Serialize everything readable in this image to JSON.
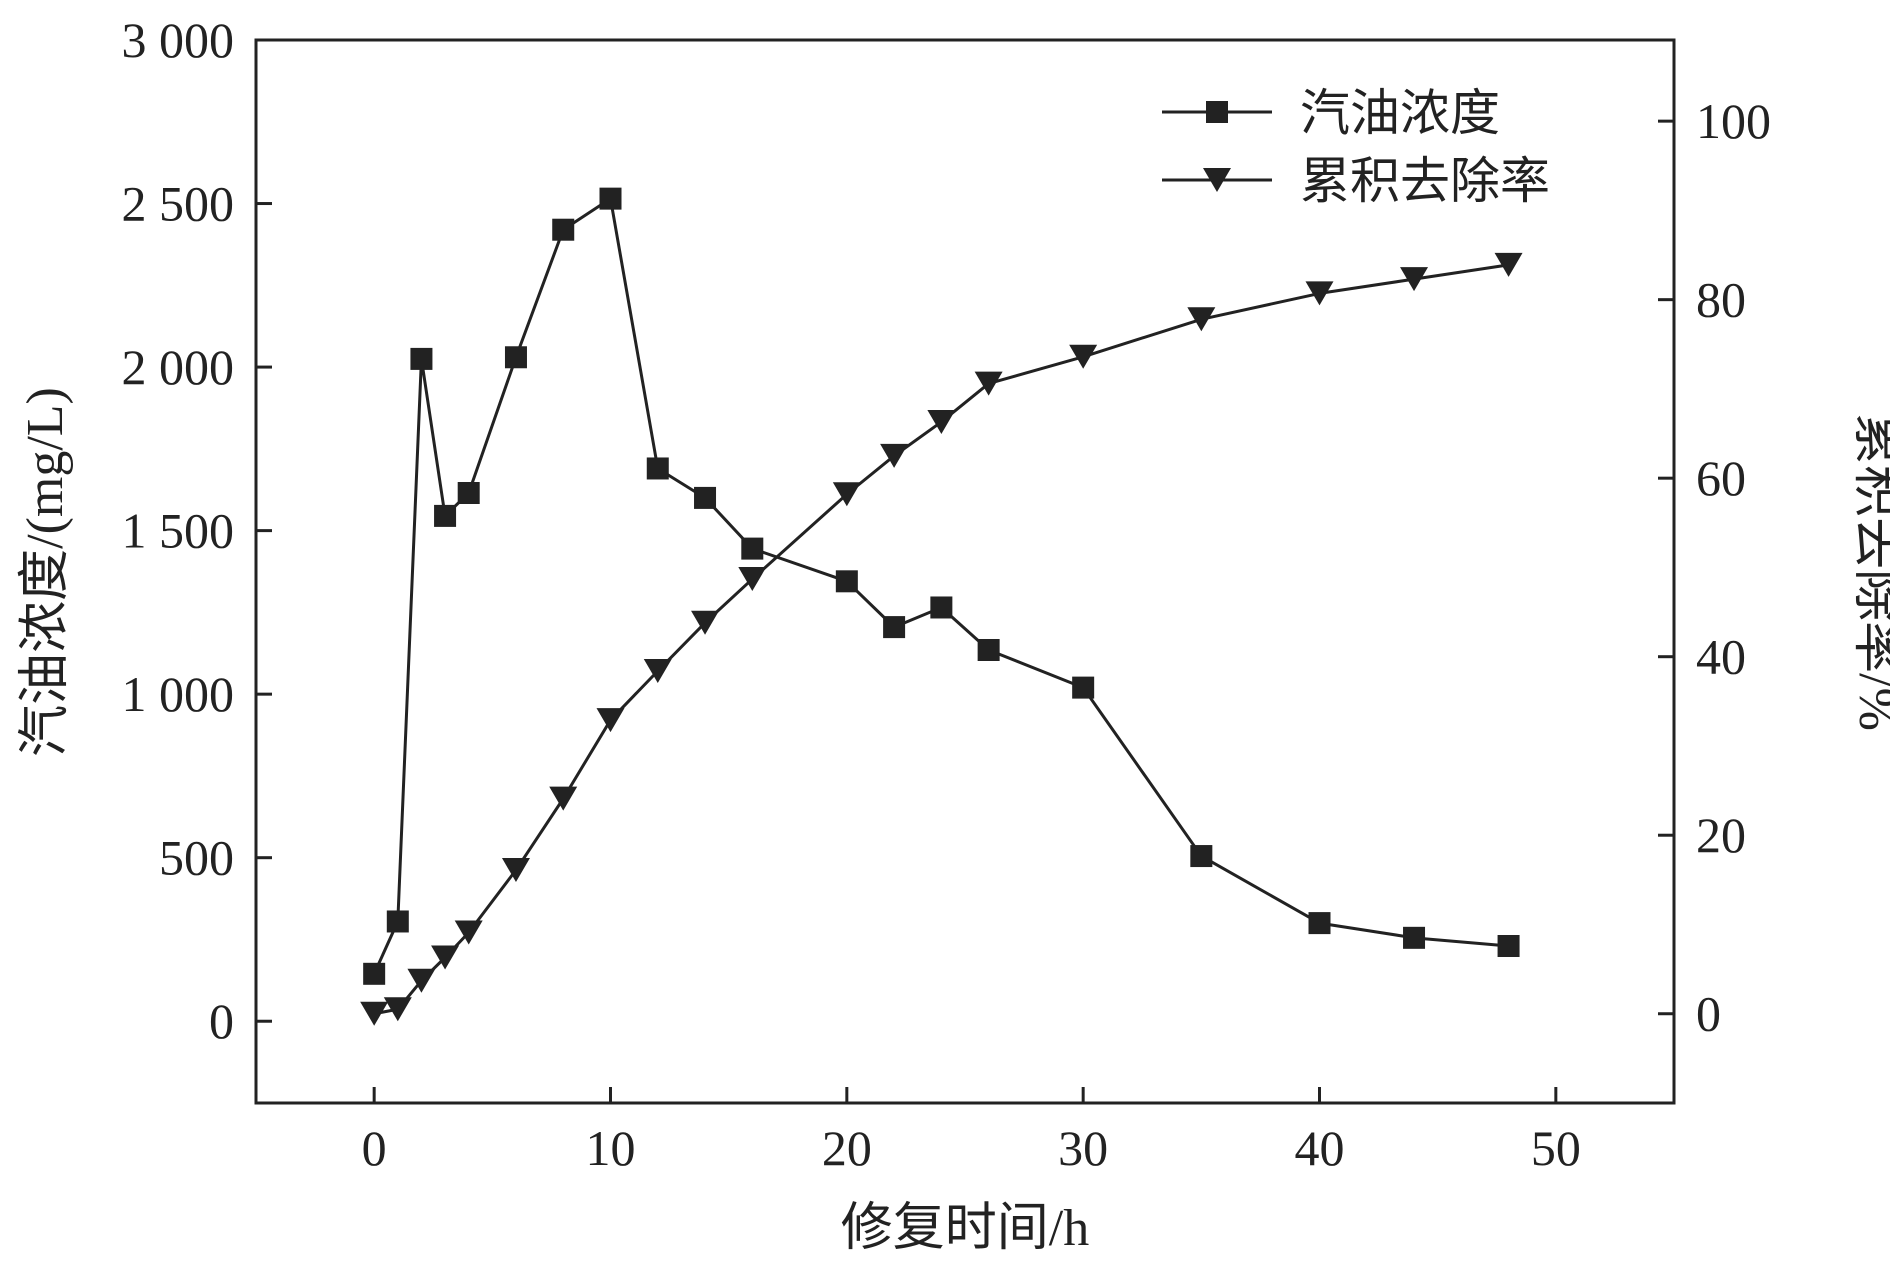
{
  "chart_data": {
    "type": "line",
    "xlabel": "修复时间/h",
    "ylabel_left": "汽油浓度/(mg/L)",
    "ylabel_right": "累积去除率/%",
    "xlim": [
      -5,
      55
    ],
    "ylim_left": [
      -250,
      3000
    ],
    "ylim_right": [
      -10,
      109.09
    ],
    "x_ticks": [
      0,
      10,
      20,
      30,
      40,
      50
    ],
    "x_tick_labels": [
      "0",
      "10",
      "20",
      "30",
      "40",
      "50"
    ],
    "y_left_ticks": [
      0,
      500,
      1000,
      1500,
      2000,
      2500,
      3000
    ],
    "y_left_tick_labels": [
      "0",
      "500",
      "1 000",
      "1 500",
      "2 000",
      "2 500",
      "3 000"
    ],
    "y_right_ticks": [
      0,
      20,
      40,
      60,
      80,
      100
    ],
    "y_right_tick_labels": [
      "0",
      "20",
      "40",
      "60",
      "80",
      "100"
    ],
    "grid": false,
    "legend_position": "top-right",
    "series": [
      {
        "name": "汽油浓度",
        "axis": "left",
        "marker": "square",
        "color": "#222222",
        "x": [
          0,
          1,
          2,
          3,
          4,
          6,
          8,
          10,
          12,
          14,
          16,
          20,
          22,
          24,
          26,
          30,
          35,
          40,
          44,
          48
        ],
        "values": [
          145,
          305,
          2025,
          1545,
          1615,
          2030,
          2420,
          2515,
          1690,
          1600,
          1445,
          1345,
          1205,
          1265,
          1135,
          1020,
          505,
          300,
          255,
          230
        ]
      },
      {
        "name": "累积去除率",
        "axis": "right",
        "marker": "triangle-down",
        "color": "#222222",
        "x": [
          0,
          1,
          2,
          3,
          4,
          6,
          8,
          10,
          12,
          14,
          16,
          20,
          22,
          24,
          26,
          30,
          35,
          40,
          44,
          48
        ],
        "values": [
          0,
          0.5,
          3.7,
          6.3,
          9.1,
          16.1,
          24.1,
          32.9,
          38.4,
          43.8,
          48.7,
          58.2,
          62.5,
          66.3,
          70.6,
          73.6,
          77.8,
          80.7,
          82.3,
          83.9
        ]
      }
    ]
  }
}
